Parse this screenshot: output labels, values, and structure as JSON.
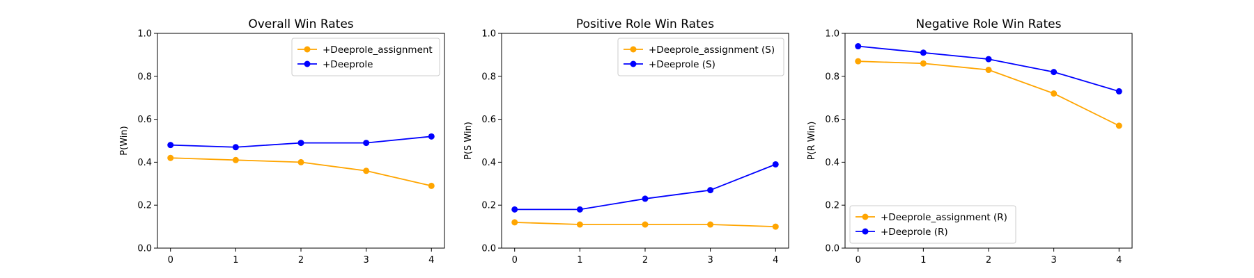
{
  "chart_data": [
    {
      "type": "line",
      "title": "Overall Win Rates",
      "xlabel": "",
      "ylabel": "P(Win)",
      "x": [
        0,
        1,
        2,
        3,
        4
      ],
      "ylim": [
        0,
        1.0
      ],
      "yticks": [
        "0.0",
        "0.2",
        "0.4",
        "0.6",
        "0.8",
        "1.0"
      ],
      "xticks": [
        "0",
        "1",
        "2",
        "3",
        "4"
      ],
      "legend_position": "upper right",
      "grid": false,
      "series": [
        {
          "name": "+Deeprole_assignment",
          "color": "#FFA500",
          "values": [
            0.42,
            0.41,
            0.4,
            0.36,
            0.29
          ]
        },
        {
          "name": "+Deeprole",
          "color": "#0000FF",
          "values": [
            0.48,
            0.47,
            0.49,
            0.49,
            0.52
          ]
        }
      ]
    },
    {
      "type": "line",
      "title": "Positive Role Win Rates",
      "xlabel": "",
      "ylabel": "P(S Win)",
      "x": [
        0,
        1,
        2,
        3,
        4
      ],
      "ylim": [
        0,
        1.0
      ],
      "yticks": [
        "0.0",
        "0.2",
        "0.4",
        "0.6",
        "0.8",
        "1.0"
      ],
      "xticks": [
        "0",
        "1",
        "2",
        "3",
        "4"
      ],
      "legend_position": "upper right",
      "grid": false,
      "series": [
        {
          "name": "+Deeprole_assignment (S)",
          "color": "#FFA500",
          "values": [
            0.12,
            0.11,
            0.11,
            0.11,
            0.1
          ]
        },
        {
          "name": "+Deeprole (S)",
          "color": "#0000FF",
          "values": [
            0.18,
            0.18,
            0.23,
            0.27,
            0.39
          ]
        }
      ]
    },
    {
      "type": "line",
      "title": "Negative Role Win Rates",
      "xlabel": "",
      "ylabel": "P(R Win)",
      "x": [
        0,
        1,
        2,
        3,
        4
      ],
      "ylim": [
        0,
        1.0
      ],
      "yticks": [
        "0.0",
        "0.2",
        "0.4",
        "0.6",
        "0.8",
        "1.0"
      ],
      "xticks": [
        "0",
        "1",
        "2",
        "3",
        "4"
      ],
      "legend_position": "lower left",
      "grid": false,
      "series": [
        {
          "name": "+Deeprole_assignment (R)",
          "color": "#FFA500",
          "values": [
            0.87,
            0.86,
            0.83,
            0.72,
            0.57
          ]
        },
        {
          "name": "+Deeprole (R)",
          "color": "#0000FF",
          "values": [
            0.94,
            0.91,
            0.88,
            0.82,
            0.73
          ]
        }
      ]
    }
  ]
}
